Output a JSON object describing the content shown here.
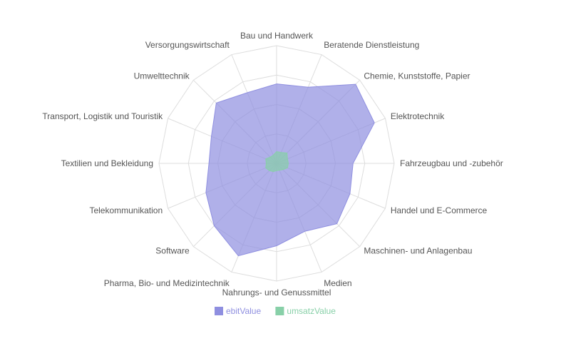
{
  "chart_data": {
    "type": "radar",
    "categories": [
      "Bau und Handwerk",
      "Beratende Dienstleistung",
      "Chemie, Kunststoffe, Papier",
      "Elektrotechnik",
      "Fahrzeugbau und -zubehör",
      "Handel und E-Commerce",
      "Maschinen- und Anlagenbau",
      "Medien",
      "Nahrungs- und Genussmittel",
      "Pharma, Bio- und Medizintechnik",
      "Software",
      "Telekommunikation",
      "Textilien und Bekleidung",
      "Transport, Logistik und Touristik",
      "Umwelttechnik",
      "Versorgungswirtschaft"
    ],
    "series": [
      {
        "name": "ebitValue",
        "color": "#8f8fe0",
        "values": [
          2.7,
          2.8,
          3.8,
          3.6,
          2.6,
          2.7,
          2.9,
          2.5,
          2.8,
          3.4,
          3.0,
          2.6,
          2.3,
          2.4,
          2.9,
          2.6
        ]
      },
      {
        "name": "umsatzValue",
        "color": "#88d0a8",
        "values": [
          0.4,
          0.4,
          0.5,
          0.4,
          0.4,
          0.4,
          0.3,
          0.25,
          0.25,
          0.3,
          0.35,
          0.4,
          0.35,
          0.4,
          0.3,
          0.3
        ]
      }
    ],
    "r_range": [
      0,
      4
    ],
    "ring_count": 4,
    "grid": true,
    "legend_position": "bottom"
  }
}
